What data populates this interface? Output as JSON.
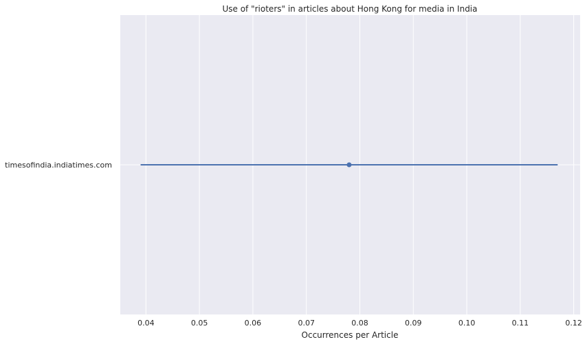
{
  "chart_data": {
    "type": "scatter",
    "title": "Use of \"rioters\" in articles about Hong Kong for media in India",
    "xlabel": "Occurrences per Article",
    "ylabel": "",
    "xlim": [
      0.0352,
      0.1212
    ],
    "xticks": [
      0.04,
      0.05,
      0.06,
      0.07,
      0.08,
      0.09,
      0.1,
      0.11,
      0.12
    ],
    "xtick_labels": [
      "0.04",
      "0.05",
      "0.06",
      "0.07",
      "0.08",
      "0.09",
      "0.10",
      "0.11",
      "0.12"
    ],
    "categories": [
      "timesofindia.indiatimes.com"
    ],
    "series": [
      {
        "values": [
          0.078
        ],
        "ci_low": [
          0.039
        ],
        "ci_high": [
          0.117
        ]
      }
    ],
    "grid": true,
    "legend": "none",
    "colors": {
      "background": "#eaeaf2",
      "grid": "#ffffff",
      "series": "#4c72b0",
      "text": "#262626"
    }
  }
}
